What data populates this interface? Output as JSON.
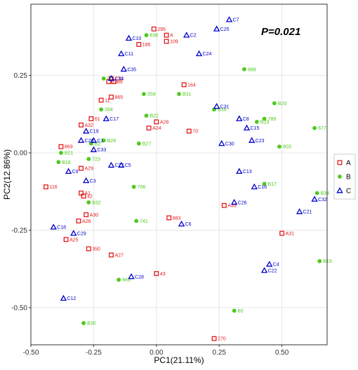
{
  "chart_data": {
    "type": "scatter",
    "title": "",
    "xlabel": "PC1(21.11%)",
    "ylabel": "PC2(12.86%)",
    "xlim": [
      -0.5,
      0.68
    ],
    "ylim": [
      -0.62,
      0.48
    ],
    "xticks": [
      -0.5,
      -0.25,
      0.0,
      0.25,
      0.5
    ],
    "yticks": [
      0.25,
      0.0,
      -0.25,
      -0.5
    ],
    "xtick_labels": [
      "-0.50",
      "-0.25",
      "0.00",
      "0.25",
      "0.50"
    ],
    "ytick_labels": [
      "0.25",
      "0.00",
      "-0.25",
      "-0.50"
    ],
    "grid": true,
    "legend_position": "right",
    "annotation": "P=0.021",
    "series": [
      {
        "name": "A",
        "color": "#e41a1c",
        "marker": "square",
        "points": [
          {
            "label": "295",
            "x": -0.01,
            "y": 0.4
          },
          {
            "label": "A",
            "x": 0.04,
            "y": 0.38
          },
          {
            "label": "109",
            "x": 0.04,
            "y": 0.36
          },
          {
            "label": "195",
            "x": -0.07,
            "y": 0.35
          },
          {
            "label": "133",
            "x": -0.18,
            "y": 0.24
          },
          {
            "label": "73",
            "x": -0.19,
            "y": 0.23
          },
          {
            "label": "89",
            "x": -0.17,
            "y": 0.23
          },
          {
            "label": "164",
            "x": 0.11,
            "y": 0.22
          },
          {
            "label": "865",
            "x": -0.18,
            "y": 0.18
          },
          {
            "label": "11",
            "x": -0.22,
            "y": 0.17
          },
          {
            "label": "61",
            "x": -0.26,
            "y": 0.11
          },
          {
            "label": "A28",
            "x": 0.0,
            "y": 0.1
          },
          {
            "label": "A32",
            "x": -0.3,
            "y": 0.09
          },
          {
            "label": "A24",
            "x": -0.03,
            "y": 0.08
          },
          {
            "label": "70",
            "x": 0.13,
            "y": 0.07
          },
          {
            "label": "869",
            "x": -0.38,
            "y": 0.02
          },
          {
            "label": "A29",
            "x": -0.3,
            "y": -0.05
          },
          {
            "label": "116",
            "x": -0.44,
            "y": -0.11
          },
          {
            "label": "A1",
            "x": -0.3,
            "y": -0.13
          },
          {
            "label": "42",
            "x": -0.29,
            "y": -0.14
          },
          {
            "label": "A30",
            "x": -0.28,
            "y": -0.2
          },
          {
            "label": "883",
            "x": 0.05,
            "y": -0.21
          },
          {
            "label": "A26",
            "x": -0.31,
            "y": -0.22
          },
          {
            "label": "A33",
            "x": 0.27,
            "y": -0.17
          },
          {
            "label": "A25",
            "x": -0.36,
            "y": -0.28
          },
          {
            "label": "A31",
            "x": 0.5,
            "y": -0.26
          },
          {
            "label": "350",
            "x": -0.27,
            "y": -0.31
          },
          {
            "label": "A27",
            "x": -0.18,
            "y": -0.33
          },
          {
            "label": "43",
            "x": 0.0,
            "y": -0.39
          },
          {
            "label": "270",
            "x": 0.23,
            "y": -0.6
          }
        ]
      },
      {
        "name": "B",
        "color": "#4dca1e",
        "marker": "circle",
        "points": [
          {
            "label": "638",
            "x": -0.04,
            "y": 0.38
          },
          {
            "label": "B",
            "x": -0.21,
            "y": 0.24
          },
          {
            "label": "868",
            "x": 0.35,
            "y": 0.27
          },
          {
            "label": "359",
            "x": -0.05,
            "y": 0.19
          },
          {
            "label": "B31",
            "x": 0.09,
            "y": 0.19
          },
          {
            "label": "B20",
            "x": 0.47,
            "y": 0.16
          },
          {
            "label": "394",
            "x": -0.22,
            "y": 0.14
          },
          {
            "label": "B22",
            "x": -0.04,
            "y": 0.12
          },
          {
            "label": "B36",
            "x": 0.23,
            "y": 0.14
          },
          {
            "label": "789",
            "x": 0.43,
            "y": 0.11
          },
          {
            "label": "B23",
            "x": 0.4,
            "y": 0.1
          },
          {
            "label": "677",
            "x": 0.63,
            "y": 0.08
          },
          {
            "label": "B28",
            "x": -0.21,
            "y": 0.04
          },
          {
            "label": "B27",
            "x": -0.07,
            "y": 0.03
          },
          {
            "label": "B2",
            "x": -0.26,
            "y": 0.03
          },
          {
            "label": "803",
            "x": 0.49,
            "y": 0.02
          },
          {
            "label": "B21",
            "x": -0.38,
            "y": 0.0
          },
          {
            "label": "723",
            "x": -0.27,
            "y": -0.02
          },
          {
            "label": "B18",
            "x": -0.39,
            "y": -0.03
          },
          {
            "label": "B17",
            "x": 0.43,
            "y": -0.1
          },
          {
            "label": "706",
            "x": -0.09,
            "y": -0.11
          },
          {
            "label": "B34",
            "x": 0.64,
            "y": -0.13
          },
          {
            "label": "B32",
            "x": -0.27,
            "y": -0.16
          },
          {
            "label": "741",
            "x": -0.08,
            "y": -0.22
          },
          {
            "label": "B19",
            "x": 0.65,
            "y": -0.35
          },
          {
            "label": "669",
            "x": -0.15,
            "y": -0.41
          },
          {
            "label": "60",
            "x": 0.31,
            "y": -0.51
          },
          {
            "label": "B30",
            "x": -0.29,
            "y": -0.55
          }
        ]
      },
      {
        "name": "C",
        "color": "#0000cc",
        "marker": "triangle",
        "points": [
          {
            "label": "C7",
            "x": 0.29,
            "y": 0.43
          },
          {
            "label": "C25",
            "x": 0.24,
            "y": 0.4
          },
          {
            "label": "C2",
            "x": 0.12,
            "y": 0.38
          },
          {
            "label": "C10",
            "x": -0.11,
            "y": 0.37
          },
          {
            "label": "C11",
            "x": -0.14,
            "y": 0.32
          },
          {
            "label": "C24",
            "x": 0.17,
            "y": 0.32
          },
          {
            "label": "C35",
            "x": -0.13,
            "y": 0.27
          },
          {
            "label": "C34",
            "x": -0.18,
            "y": 0.24
          },
          {
            "label": "C31",
            "x": 0.24,
            "y": 0.15
          },
          {
            "label": "C17",
            "x": -0.2,
            "y": 0.11
          },
          {
            "label": "C8",
            "x": 0.33,
            "y": 0.11
          },
          {
            "label": "C15",
            "x": 0.36,
            "y": 0.08
          },
          {
            "label": "C19",
            "x": -0.28,
            "y": 0.07
          },
          {
            "label": "C20",
            "x": -0.3,
            "y": 0.04
          },
          {
            "label": "C1",
            "x": -0.25,
            "y": 0.04
          },
          {
            "label": "C23",
            "x": 0.38,
            "y": 0.04
          },
          {
            "label": "C33",
            "x": -0.25,
            "y": 0.01
          },
          {
            "label": "C30",
            "x": 0.26,
            "y": 0.03
          },
          {
            "label": "C27",
            "x": -0.18,
            "y": -0.04
          },
          {
            "label": "C5",
            "x": -0.14,
            "y": -0.04
          },
          {
            "label": "C9",
            "x": -0.35,
            "y": -0.06
          },
          {
            "label": "C13",
            "x": 0.33,
            "y": -0.06
          },
          {
            "label": "C3",
            "x": -0.28,
            "y": -0.09
          },
          {
            "label": "C16",
            "x": 0.39,
            "y": -0.11
          },
          {
            "label": "C26",
            "x": 0.31,
            "y": -0.16
          },
          {
            "label": "C32",
            "x": 0.63,
            "y": -0.15
          },
          {
            "label": "C21",
            "x": 0.57,
            "y": -0.19
          },
          {
            "label": "C18",
            "x": -0.41,
            "y": -0.24
          },
          {
            "label": "C6",
            "x": 0.1,
            "y": -0.23
          },
          {
            "label": "C29",
            "x": -0.33,
            "y": -0.26
          },
          {
            "label": "C4",
            "x": 0.45,
            "y": -0.36
          },
          {
            "label": "C22",
            "x": 0.43,
            "y": -0.38
          },
          {
            "label": "C28",
            "x": -0.1,
            "y": -0.4
          },
          {
            "label": "C12",
            "x": -0.37,
            "y": -0.47
          }
        ]
      }
    ]
  }
}
